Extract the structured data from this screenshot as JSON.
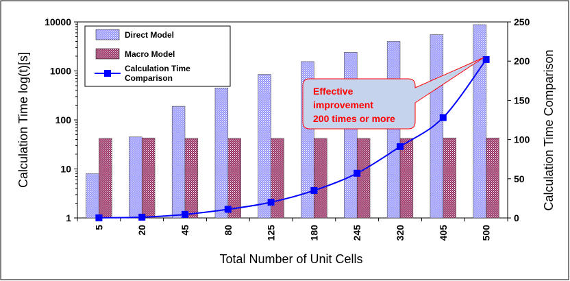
{
  "chart_data": {
    "type": "bar",
    "categories": [
      "5",
      "20",
      "45",
      "80",
      "125",
      "180",
      "245",
      "320",
      "405",
      "500"
    ],
    "series": [
      {
        "name": "Direct Model",
        "type": "bar",
        "axis": "left",
        "color": "#9999ff",
        "values": [
          8,
          45,
          190,
          450,
          850,
          1550,
          2400,
          4000,
          5500,
          8800
        ]
      },
      {
        "name": "Macro Model",
        "type": "bar",
        "axis": "left",
        "color": "#993366",
        "values": [
          42,
          43,
          42,
          42,
          42,
          42,
          42,
          42,
          43,
          43
        ]
      },
      {
        "name": "Calculation Time Comparison",
        "type": "line",
        "axis": "right",
        "color": "#0000ff",
        "values": [
          0.2,
          1,
          4.5,
          11,
          20,
          35,
          57,
          91,
          128,
          202
        ]
      }
    ],
    "legend": [
      "Direct Model",
      "Macro Model",
      "Calculation Time Comparison"
    ],
    "legend_placement": "top-left",
    "xlabel": "Total Number of Unit Cells",
    "ylabel": "Calculation Time log(t)[s]",
    "y2label": "Calculation Time Comparison",
    "ylim": [
      1,
      10000
    ],
    "yscale": "log",
    "yticks": [
      "1",
      "10",
      "100",
      "1000",
      "10000"
    ],
    "y2lim": [
      0,
      250
    ],
    "y2ticks": [
      "0",
      "50",
      "100",
      "150",
      "200",
      "250"
    ],
    "grid": false,
    "annotation": {
      "lines": [
        "Effective",
        "improvement",
        "200 times or more"
      ],
      "color": "#ff0000",
      "fill": "#c5d3ec"
    }
  }
}
